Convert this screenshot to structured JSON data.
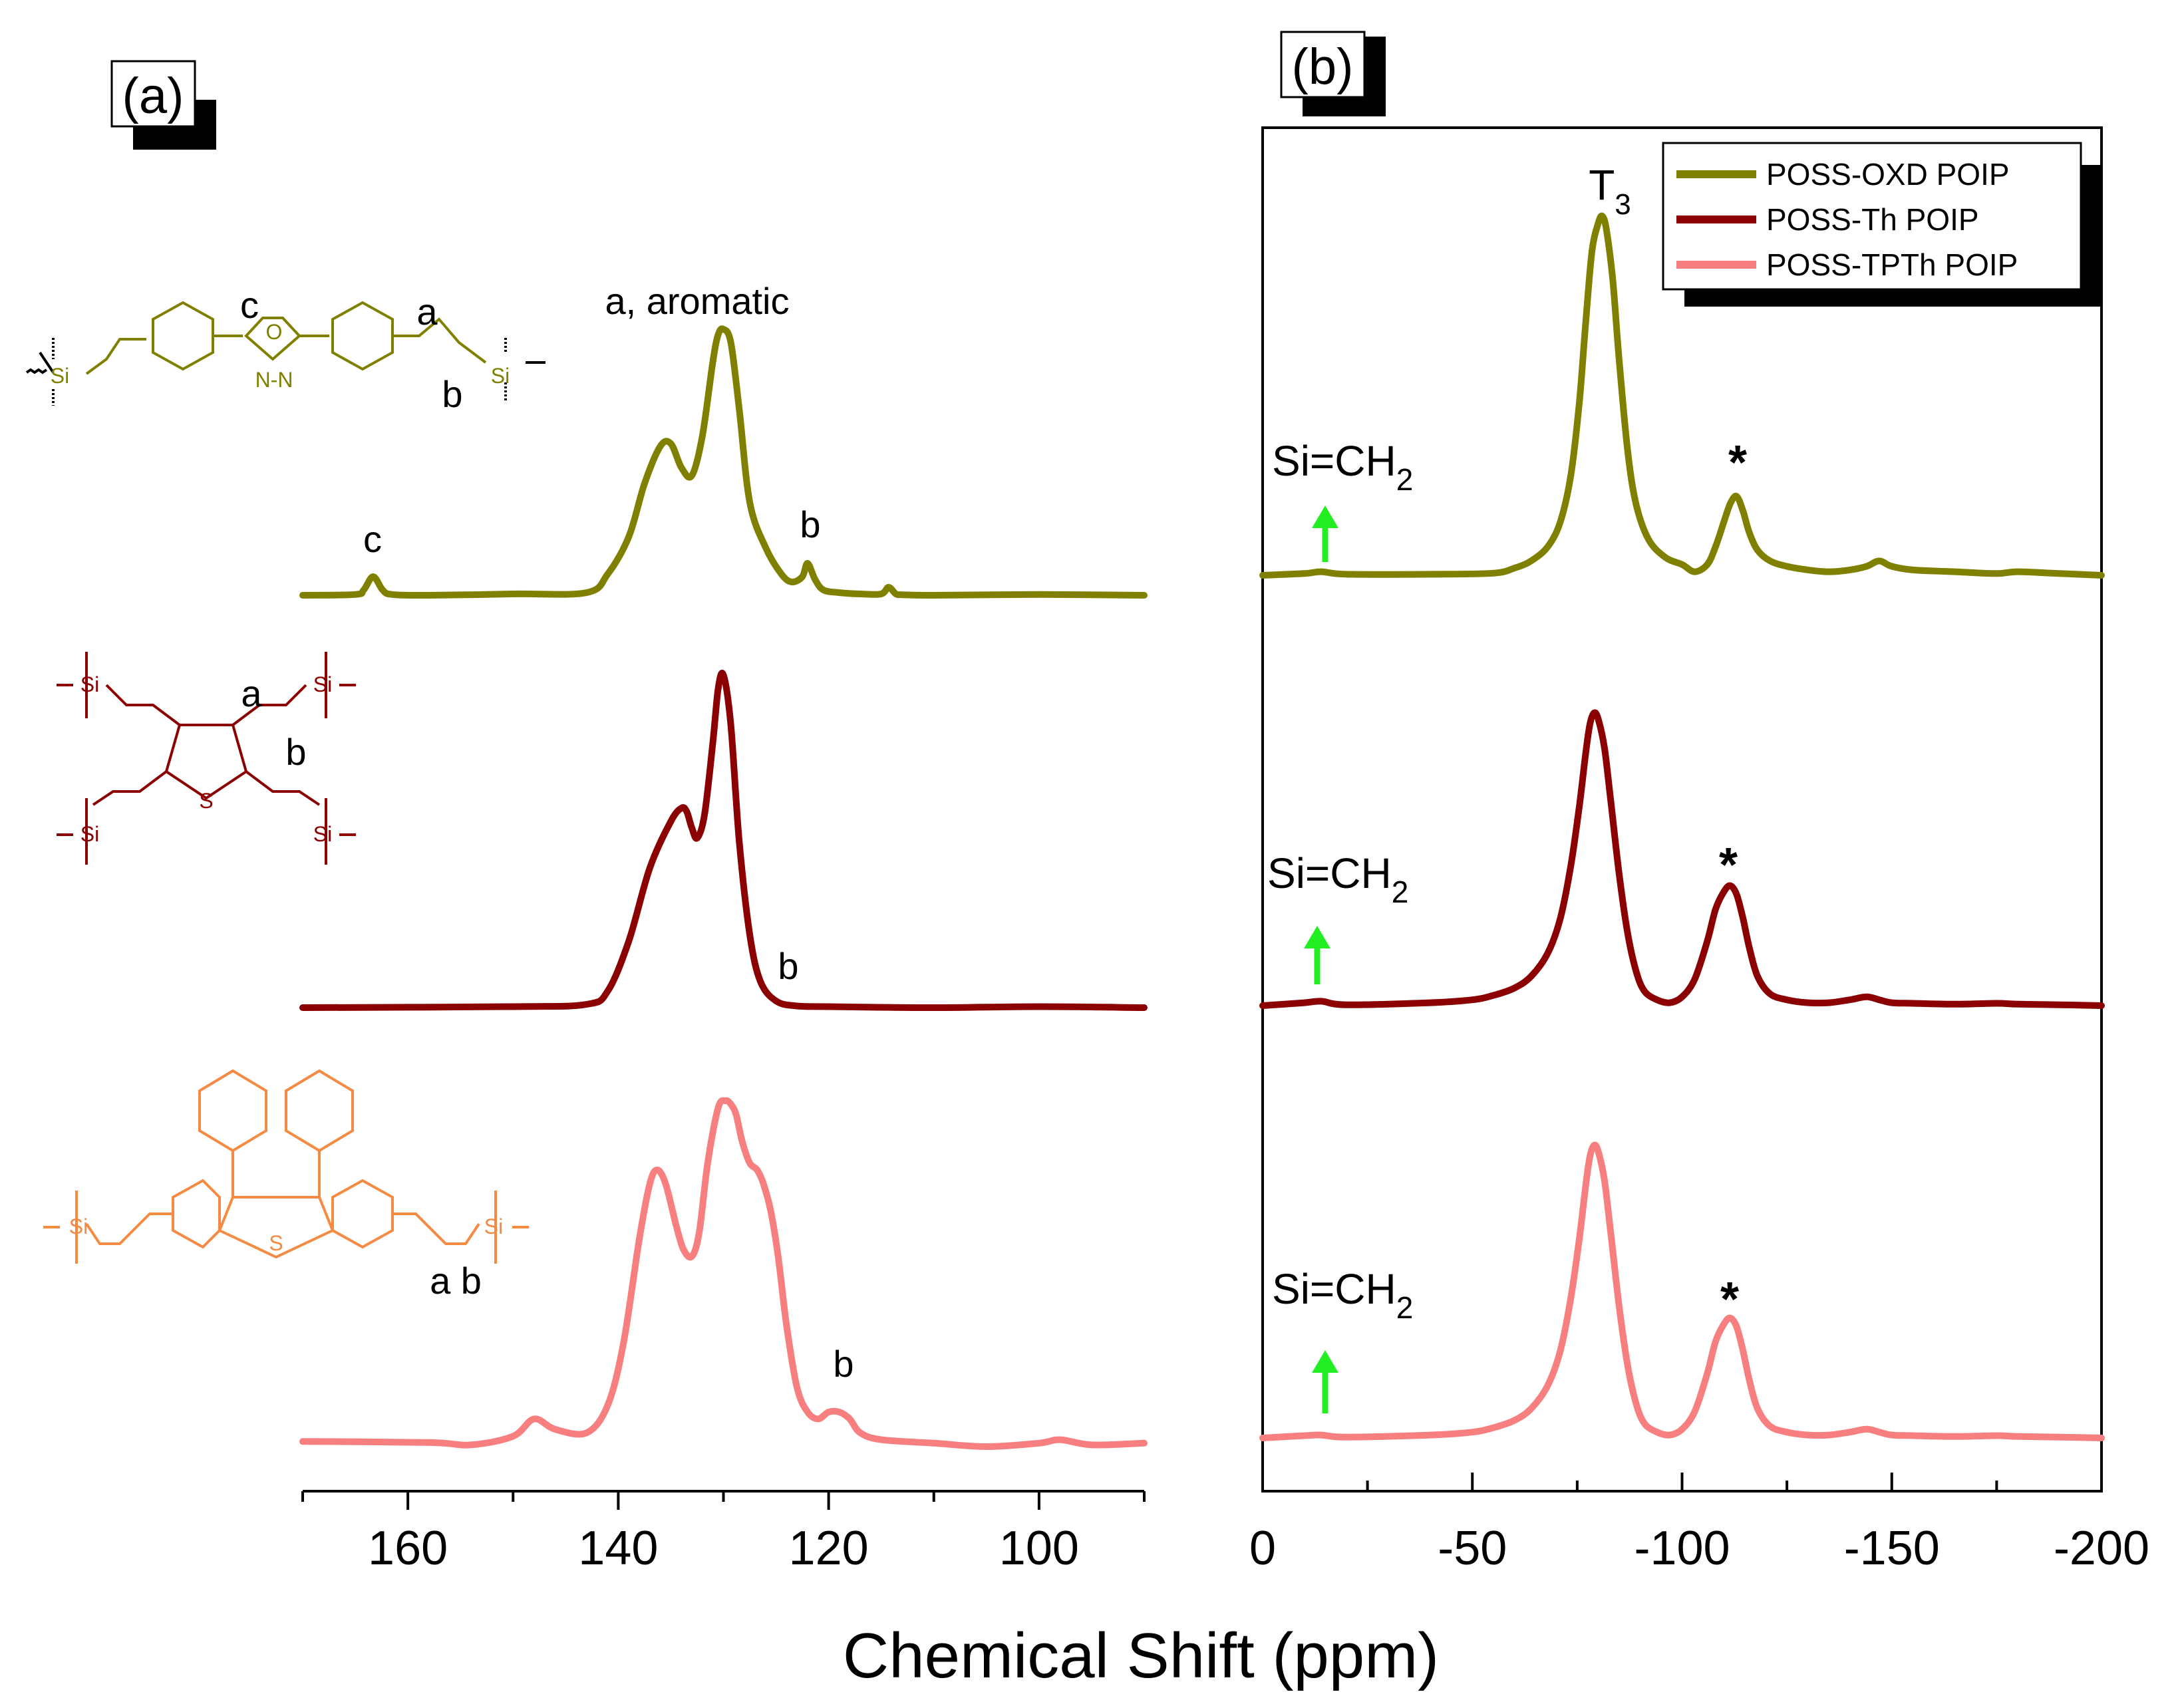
{
  "chart_data": [
    {
      "panel": "(a)",
      "type": "line",
      "xlabel": "Chemical Shift (ppm)",
      "xlim": [
        170,
        90
      ],
      "xticks": [
        160,
        140,
        120,
        100
      ],
      "y_axis": "hidden (stacked, offset traces)",
      "series": [
        {
          "name": "POSS-OXD POIP",
          "color": "#808000",
          "x": [
            170,
            165,
            164.2,
            163.3,
            162.4,
            161.5,
            158,
            150,
            143,
            141,
            139,
            137.5,
            136,
            135,
            134,
            133,
            132,
            131,
            130.5,
            130,
            129.3,
            128.5,
            127.5,
            126,
            124.5,
            123.5,
            122.5,
            122,
            121.3,
            120.5,
            119,
            117,
            115,
            114.3,
            113.6,
            113,
            110,
            100,
            90
          ],
          "values": [
            0,
            0.003,
            0.02,
            0.07,
            0.02,
            0.003,
            0,
            0.005,
            0.01,
            0.08,
            0.22,
            0.42,
            0.56,
            0.57,
            0.48,
            0.45,
            0.6,
            0.88,
            0.98,
            1.0,
            0.95,
            0.7,
            0.35,
            0.18,
            0.08,
            0.05,
            0.07,
            0.12,
            0.06,
            0.02,
            0.01,
            0.005,
            0.005,
            0.03,
            0.005,
            0.002,
            0,
            0.003,
            0
          ]
        },
        {
          "name": "POSS-Th POIP",
          "color": "#8b0000",
          "x": [
            170,
            150,
            143,
            141,
            139,
            137,
            135,
            134,
            133.5,
            133,
            132.5,
            131.8,
            131,
            130.5,
            130,
            129.3,
            128.5,
            127.5,
            126.5,
            125,
            123,
            120,
            110,
            100,
            90
          ],
          "values": [
            0,
            0.003,
            0.01,
            0.05,
            0.2,
            0.42,
            0.56,
            0.6,
            0.59,
            0.54,
            0.51,
            0.58,
            0.8,
            0.96,
            1.0,
            0.85,
            0.5,
            0.22,
            0.08,
            0.02,
            0.005,
            0.003,
            0,
            0.003,
            0
          ]
        },
        {
          "name": "POSS-TPTh POIP",
          "color": "#f77f7f",
          "x": [
            170,
            158,
            154,
            150,
            148,
            146,
            143,
            141,
            139.5,
            138,
            137,
            136.3,
            135.5,
            134.5,
            133.8,
            133,
            132.3,
            131.5,
            130.5,
            129.8,
            129.3,
            128.8,
            128.2,
            127.5,
            126.8,
            126.2,
            125.5,
            124.8,
            124,
            123,
            122,
            121,
            120,
            119,
            118,
            117,
            115,
            110,
            105,
            100,
            98,
            95,
            90
          ],
          "values": [
            0.015,
            0.012,
            0.005,
            0.03,
            0.08,
            0.05,
            0.04,
            0.12,
            0.3,
            0.6,
            0.76,
            0.8,
            0.76,
            0.64,
            0.57,
            0.55,
            0.62,
            0.82,
            0.98,
            1.0,
            0.99,
            0.96,
            0.88,
            0.82,
            0.8,
            0.76,
            0.68,
            0.55,
            0.35,
            0.17,
            0.1,
            0.08,
            0.1,
            0.1,
            0.08,
            0.04,
            0.02,
            0.01,
            0.0,
            0.01,
            0.02,
            0.005,
            0.01
          ]
        }
      ],
      "annotations": {
        "oxd_peak_c": "c",
        "oxd_peak_main": "a, aromatic",
        "oxd_peak_b": "b",
        "th_peak_b": "b",
        "tpth_peak_b": "b",
        "tpth_struct_ab": "a b"
      }
    },
    {
      "panel": "(b)",
      "type": "line",
      "xlabel": "Chemical Shift (ppm)",
      "xlim": [
        0,
        -200
      ],
      "xticks": [
        0,
        -50,
        -100,
        -150,
        -200
      ],
      "y_axis": "hidden (stacked, offset traces)",
      "series": [
        {
          "name": "POSS-OXD POIP",
          "color": "#808000",
          "x": [
            0,
            -10,
            -14,
            -20,
            -40,
            -55,
            -60,
            -64,
            -68,
            -71,
            -73.5,
            -75.5,
            -77,
            -78.5,
            -80,
            -81,
            -82,
            -83.5,
            -85,
            -87,
            -89,
            -92,
            -96,
            -100,
            -103,
            -106,
            -108,
            -110,
            -111.5,
            -113,
            -114.5,
            -116,
            -118,
            -121,
            -125,
            -130,
            -135,
            -140,
            -144,
            -147,
            -150,
            -155,
            -165,
            -175,
            -180,
            -190,
            -200
          ],
          "values": [
            0,
            0.005,
            0.01,
            0.003,
            0.003,
            0.006,
            0.02,
            0.04,
            0.08,
            0.15,
            0.28,
            0.48,
            0.7,
            0.9,
            0.98,
            1.0,
            0.96,
            0.82,
            0.6,
            0.35,
            0.2,
            0.1,
            0.05,
            0.03,
            0.01,
            0.03,
            0.08,
            0.15,
            0.2,
            0.22,
            0.18,
            0.12,
            0.07,
            0.04,
            0.025,
            0.015,
            0.01,
            0.015,
            0.025,
            0.04,
            0.025,
            0.015,
            0.01,
            0.005,
            0.01,
            0.005,
            0
          ]
        },
        {
          "name": "POSS-Th POIP",
          "color": "#8b0000",
          "x": [
            0,
            -10,
            -14,
            -20,
            -40,
            -50,
            -55,
            -60,
            -64,
            -68,
            -71,
            -73.5,
            -75.5,
            -77,
            -78,
            -79,
            -80,
            -81.5,
            -83,
            -85,
            -87,
            -89,
            -91,
            -94,
            -97,
            -100,
            -103,
            -106,
            -108,
            -110,
            -111.5,
            -113,
            -114.5,
            -116,
            -118,
            -121,
            -125,
            -130,
            -135,
            -140,
            -144,
            -147,
            -150,
            -155,
            -165,
            -175,
            -180,
            -190,
            -200
          ],
          "values": [
            0,
            0.01,
            0.015,
            0.003,
            0.01,
            0.02,
            0.035,
            0.06,
            0.1,
            0.18,
            0.3,
            0.48,
            0.68,
            0.86,
            0.96,
            1.0,
            0.98,
            0.88,
            0.7,
            0.45,
            0.25,
            0.12,
            0.05,
            0.02,
            0.01,
            0.03,
            0.09,
            0.22,
            0.33,
            0.39,
            0.41,
            0.38,
            0.3,
            0.2,
            0.1,
            0.04,
            0.02,
            0.01,
            0.01,
            0.02,
            0.03,
            0.02,
            0.01,
            0.008,
            0.005,
            0.008,
            0.005,
            0.003,
            0
          ]
        },
        {
          "name": "POSS-TPTh POIP",
          "color": "#f77f7f",
          "x": [
            0,
            -10,
            -14,
            -20,
            -40,
            -50,
            -55,
            -60,
            -64,
            -68,
            -71,
            -73.5,
            -75.5,
            -77,
            -78,
            -79,
            -80,
            -81.5,
            -83,
            -85,
            -87,
            -89,
            -91,
            -94,
            -97,
            -100,
            -103,
            -106,
            -108,
            -110,
            -111.5,
            -113,
            -114.5,
            -116,
            -118,
            -121,
            -125,
            -130,
            -135,
            -140,
            -144,
            -147,
            -150,
            -155,
            -165,
            -175,
            -180,
            -190,
            -200
          ],
          "values": [
            0,
            0.008,
            0.01,
            0.003,
            0.01,
            0.02,
            0.035,
            0.06,
            0.1,
            0.18,
            0.3,
            0.48,
            0.68,
            0.86,
            0.96,
            1.0,
            0.98,
            0.88,
            0.7,
            0.45,
            0.25,
            0.12,
            0.05,
            0.02,
            0.01,
            0.03,
            0.09,
            0.22,
            0.33,
            0.39,
            0.41,
            0.38,
            0.3,
            0.2,
            0.1,
            0.04,
            0.02,
            0.01,
            0.01,
            0.02,
            0.03,
            0.02,
            0.01,
            0.008,
            0.005,
            0.008,
            0.005,
            0.003,
            0
          ]
        }
      ],
      "legend": {
        "placement": "top-right",
        "entries": [
          "POSS-OXD POIP",
          "POSS-Th POIP",
          "POSS-TPTh POIP"
        ]
      },
      "annotations": {
        "t3_main": "T",
        "t3_sub": "3",
        "sich2_main": "Si=CH",
        "sich2_sub": "2",
        "asterisk": "*"
      }
    }
  ],
  "colors": {
    "oxd": "#808000",
    "th": "#8b0000",
    "tpth": "#f77f7f",
    "struct_tpth": "#f58a42",
    "arrow": "#22ee22"
  },
  "structures": {
    "si": "Si",
    "s": "S",
    "o": "O",
    "nn": "N-N",
    "oxd_a": "a",
    "oxd_b": "b",
    "oxd_c": "c",
    "th_a": "a",
    "th_b": "b"
  }
}
